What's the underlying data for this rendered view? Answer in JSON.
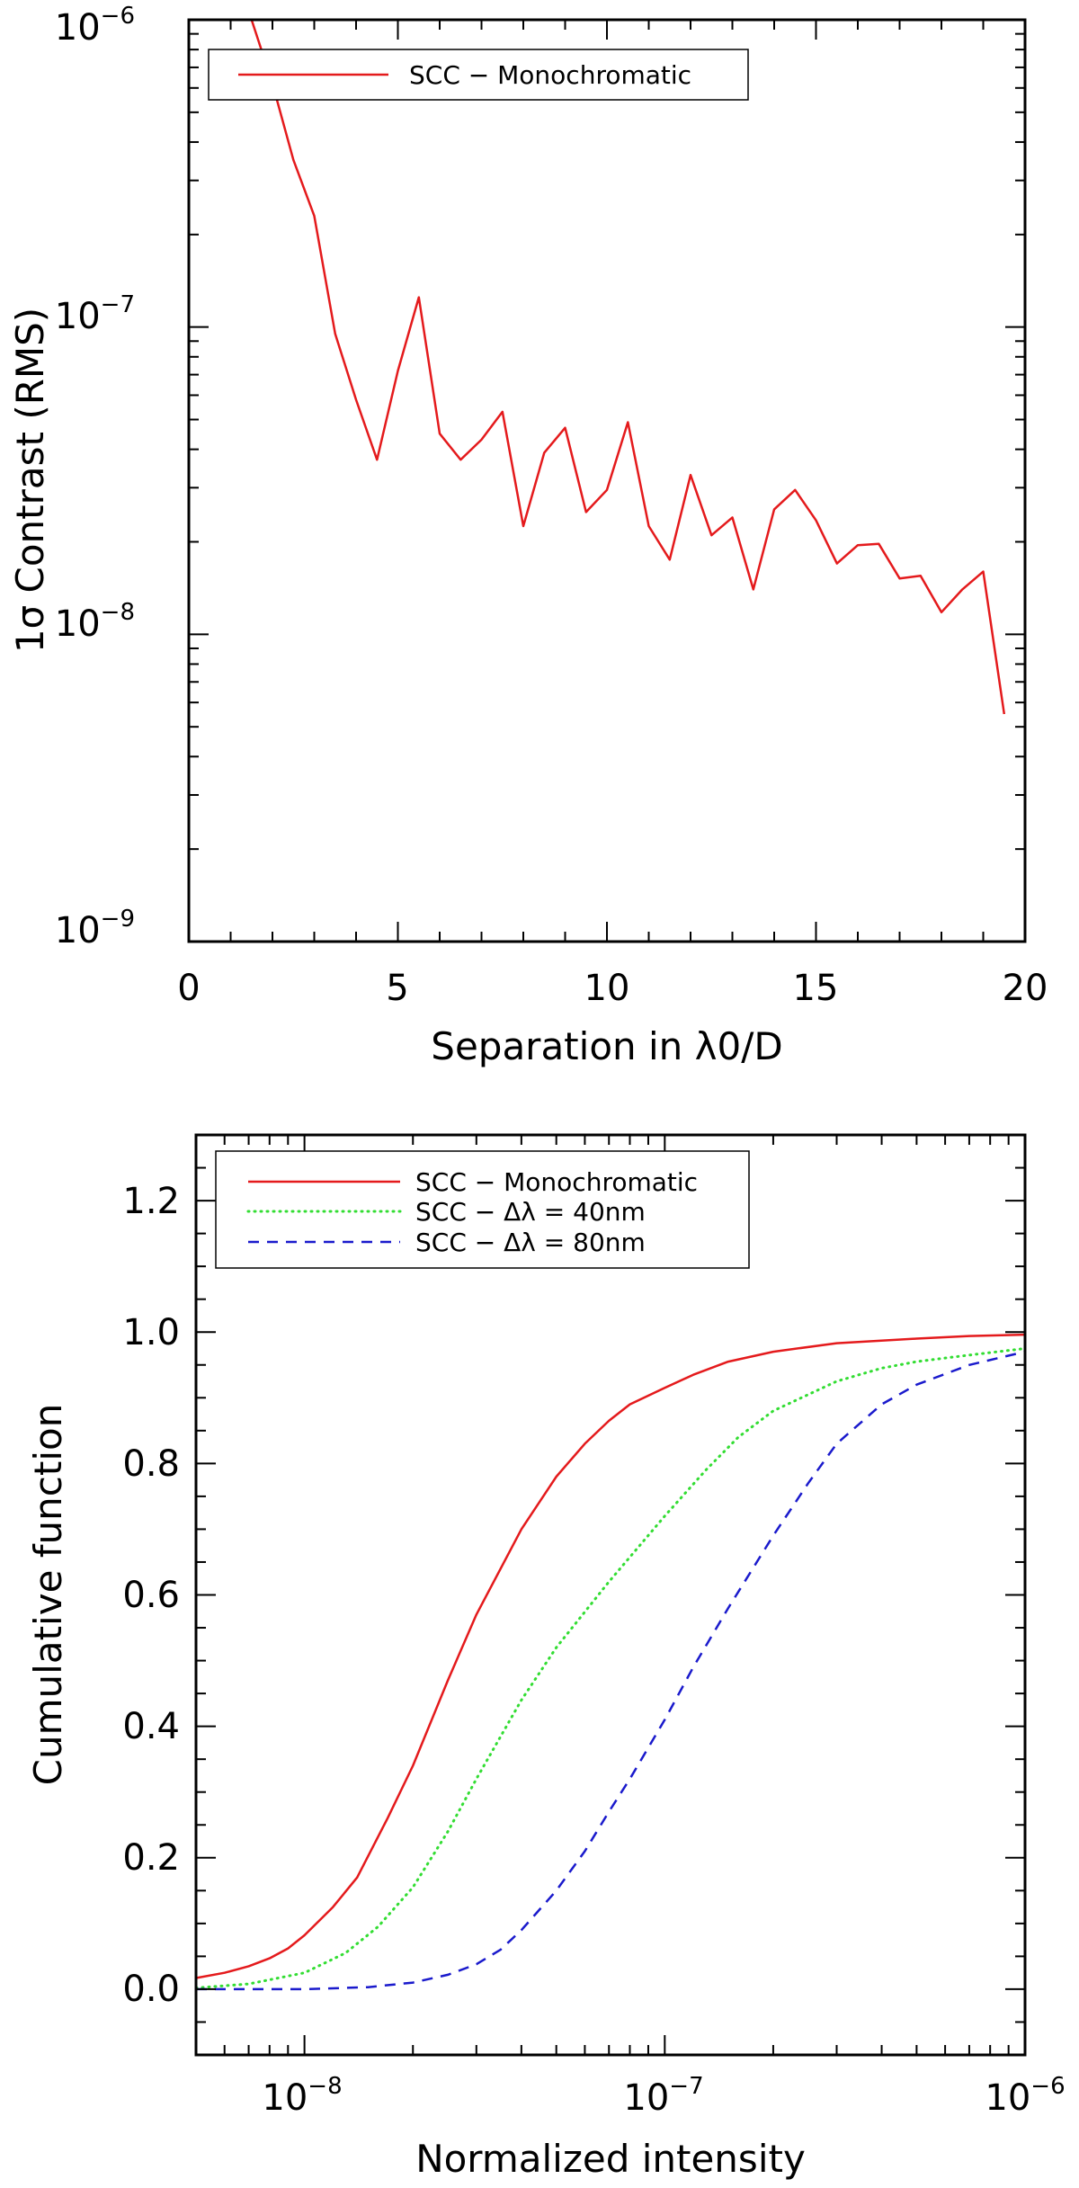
{
  "chart_data": [
    {
      "type": "line",
      "title": "",
      "xlabel": "Separation in λ0/D",
      "ylabel": "1σ Contrast (RMS)",
      "xscale": "linear",
      "yscale": "log",
      "xlim": [
        0,
        20
      ],
      "ylim": [
        1e-09,
        1e-06
      ],
      "xticks": [
        0,
        5,
        10,
        15,
        20
      ],
      "xtick_labels": [
        "0",
        "5",
        "10",
        "15",
        "20"
      ],
      "yticks": [
        1e-09,
        1e-08,
        1e-07,
        1e-06
      ],
      "ytick_labels": [
        {
          "base": "10",
          "exp": "−9"
        },
        {
          "base": "10",
          "exp": "−8"
        },
        {
          "base": "10",
          "exp": "−7"
        },
        {
          "base": "10",
          "exp": "−6"
        }
      ],
      "legend_position": "top-left",
      "series": [
        {
          "name": "SCC − Monochromatic",
          "color": "#e41a1c",
          "dash": "solid",
          "x": [
            1.5,
            2.0,
            2.5,
            3.0,
            3.5,
            4.0,
            4.5,
            5.0,
            5.5,
            6.0,
            6.5,
            7.0,
            7.5,
            8.0,
            8.5,
            9.0,
            9.5,
            10.0,
            10.5,
            11.0,
            11.5,
            12.0,
            12.5,
            13.0,
            13.5,
            14.0,
            14.5,
            15.0,
            15.5,
            16.0,
            16.5,
            17.0,
            17.5,
            18.0,
            18.5,
            19.0,
            19.5
          ],
          "values": [
            1e-06,
            6.2e-07,
            3.5e-07,
            2.3e-07,
            9.5e-08,
            5.8e-08,
            3.7e-08,
            7.2e-08,
            1.25e-07,
            4.5e-08,
            3.7e-08,
            4.3e-08,
            5.3e-08,
            2.25e-08,
            3.9e-08,
            4.7e-08,
            2.5e-08,
            2.95e-08,
            4.9e-08,
            2.25e-08,
            1.75e-08,
            3.3e-08,
            2.1e-08,
            2.4e-08,
            1.4e-08,
            2.55e-08,
            2.95e-08,
            2.35e-08,
            1.7e-08,
            1.95e-08,
            1.97e-08,
            1.52e-08,
            1.55e-08,
            1.18e-08,
            1.4e-08,
            1.6e-08,
            5.5e-09
          ]
        }
      ]
    },
    {
      "type": "line",
      "title": "",
      "xlabel": "Normalized intensity",
      "ylabel": "Cumulative function",
      "xscale": "log",
      "yscale": "linear",
      "xlim": [
        5e-09,
        1e-06
      ],
      "ylim": [
        -0.1,
        1.3
      ],
      "xticks": [
        1e-08,
        1e-07,
        1e-06
      ],
      "xtick_labels": [
        {
          "base": "10",
          "exp": "−8"
        },
        {
          "base": "10",
          "exp": "−7"
        },
        {
          "base": "10",
          "exp": "−6"
        }
      ],
      "yticks": [
        0.0,
        0.2,
        0.4,
        0.6,
        0.8,
        1.0,
        1.2
      ],
      "ytick_labels": [
        "0.0",
        "0.2",
        "0.4",
        "0.6",
        "0.8",
        "1.0",
        "1.2"
      ],
      "legend_position": "top-left",
      "series": [
        {
          "name": "SCC − Monochromatic",
          "color": "#e41a1c",
          "dash": "solid",
          "x": [
            5e-09,
            6e-09,
            7e-09,
            8e-09,
            9e-09,
            1e-08,
            1.2e-08,
            1.4e-08,
            1.7e-08,
            2e-08,
            2.5e-08,
            3e-08,
            4e-08,
            5e-08,
            6e-08,
            7e-08,
            8e-08,
            1e-07,
            1.2e-07,
            1.5e-07,
            2e-07,
            3e-07,
            5e-07,
            7e-07,
            1e-06
          ],
          "values": [
            0.017,
            0.025,
            0.035,
            0.047,
            0.062,
            0.082,
            0.125,
            0.17,
            0.26,
            0.34,
            0.47,
            0.57,
            0.7,
            0.78,
            0.83,
            0.865,
            0.89,
            0.915,
            0.935,
            0.955,
            0.97,
            0.983,
            0.99,
            0.994,
            0.996
          ]
        },
        {
          "name": "SCC − Δλ = 40nm",
          "color": "#33dd33",
          "dash": "dotted",
          "x": [
            5e-09,
            7e-09,
            1e-08,
            1.3e-08,
            1.6e-08,
            2e-08,
            2.5e-08,
            3e-08,
            4e-08,
            5e-08,
            7e-08,
            1e-07,
            1.3e-07,
            1.6e-07,
            2e-07,
            3e-07,
            4e-07,
            5e-07,
            7e-07,
            1e-06
          ],
          "values": [
            0.002,
            0.008,
            0.025,
            0.055,
            0.095,
            0.155,
            0.24,
            0.32,
            0.44,
            0.52,
            0.62,
            0.72,
            0.79,
            0.84,
            0.88,
            0.925,
            0.945,
            0.955,
            0.965,
            0.975
          ]
        },
        {
          "name": "SCC − Δλ = 80nm",
          "color": "#1a1acc",
          "dash": "dashed",
          "x": [
            5e-09,
            1e-08,
            1.5e-08,
            2e-08,
            2.5e-08,
            3e-08,
            3.5e-08,
            4e-08,
            5e-08,
            6e-08,
            7e-08,
            8e-08,
            1e-07,
            1.2e-07,
            1.5e-07,
            2e-07,
            2.5e-07,
            3e-07,
            4e-07,
            5e-07,
            7e-07,
            1e-06
          ],
          "values": [
            0.0,
            0.0,
            0.003,
            0.01,
            0.022,
            0.038,
            0.06,
            0.09,
            0.15,
            0.21,
            0.27,
            0.32,
            0.41,
            0.49,
            0.58,
            0.69,
            0.77,
            0.83,
            0.89,
            0.92,
            0.95,
            0.97
          ]
        }
      ]
    }
  ]
}
